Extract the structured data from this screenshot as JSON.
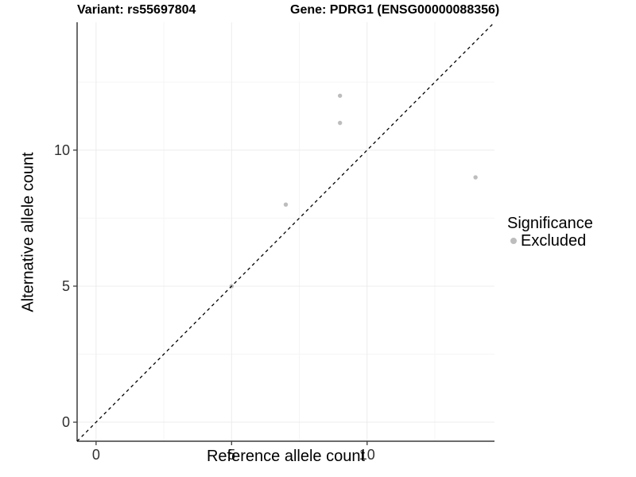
{
  "header": {
    "title_left": "Variant: rs55697804",
    "title_right": "Gene: PDRG1 (ENSG00000088356)"
  },
  "chart_data": {
    "type": "scatter",
    "title_left": "Variant: rs55697804",
    "title_right": "Gene: PDRG1 (ENSG00000088356)",
    "xlabel": "Reference allele count",
    "ylabel": "Alternative allele count",
    "xlim": [
      -0.7,
      14.7
    ],
    "ylim": [
      -0.7,
      14.7
    ],
    "x_ticks": [
      0,
      5,
      10
    ],
    "x_tick_labels": [
      "0",
      "5",
      "10"
    ],
    "y_ticks": [
      0,
      5,
      10
    ],
    "y_tick_labels": [
      "0",
      "5",
      "10"
    ],
    "x_minor_ticks": [
      2.5,
      7.5,
      12.5
    ],
    "y_minor_ticks": [
      2.5,
      7.5,
      12.5
    ],
    "grid": "major+minor, very light gray on white",
    "series": [
      {
        "name": "Excluded",
        "color": "#bdbdbd",
        "points": [
          [
            5,
            5
          ],
          [
            7,
            8
          ],
          [
            9,
            11
          ],
          [
            9,
            12
          ],
          [
            14,
            9
          ]
        ]
      }
    ],
    "reference_line": {
      "type": "identity y=x",
      "style": "dashed",
      "color": "#000000"
    },
    "legend": {
      "title": "Significance",
      "position": "right",
      "entries": [
        {
          "label": "Excluded",
          "color": "#bdbdbd"
        }
      ]
    },
    "colors": {
      "grid_major": "#ececec",
      "grid_minor": "#f5f5f5",
      "axis_line": "#3c3c3c",
      "tick_label": "#303030",
      "point": "#bdbdbd"
    }
  }
}
